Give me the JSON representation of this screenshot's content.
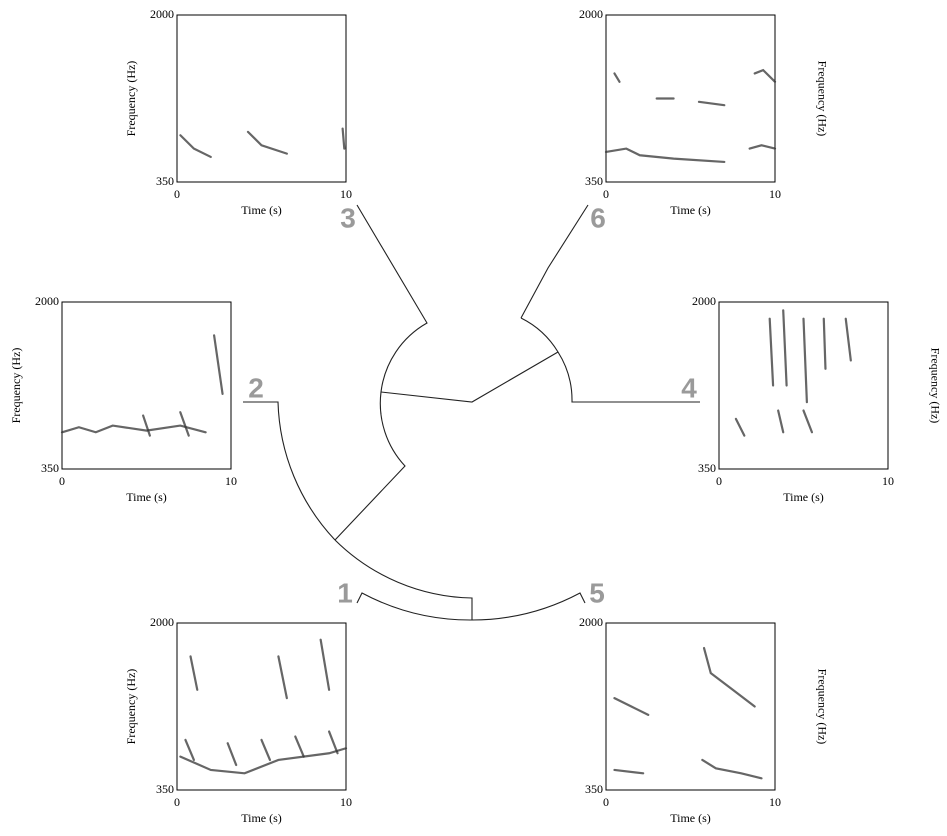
{
  "panels": [
    {
      "number": "1",
      "y_axis_label": "Frequency (Hz)",
      "x_axis_label": "Time (s)",
      "y_ticks": [
        2000,
        350
      ],
      "x_ticks": [
        0,
        10
      ]
    },
    {
      "number": "2",
      "y_axis_label": "Frequency (Hz)",
      "x_axis_label": "Time (s)",
      "y_ticks": [
        2000,
        350
      ],
      "x_ticks": [
        0,
        10
      ]
    },
    {
      "number": "3",
      "y_axis_label": "Frequency (Hz)",
      "x_axis_label": "Time (s)",
      "y_ticks": [
        2000,
        350
      ],
      "x_ticks": [
        0,
        10
      ]
    },
    {
      "number": "4",
      "y_axis_label": "Frequency (Hz)",
      "x_axis_label": "Time (s)",
      "y_ticks": [
        2000,
        350
      ],
      "x_ticks": [
        0,
        10
      ]
    },
    {
      "number": "5",
      "y_axis_label": "Frequency (Hz)",
      "x_axis_label": "Time (s)",
      "y_ticks": [
        2000,
        350
      ],
      "x_ticks": [
        0,
        10
      ]
    },
    {
      "number": "6",
      "y_axis_label": "Frequency (Hz)",
      "x_axis_label": "Time (s)",
      "y_ticks": [
        2000,
        350
      ],
      "x_ticks": [
        0,
        10
      ]
    }
  ]
}
